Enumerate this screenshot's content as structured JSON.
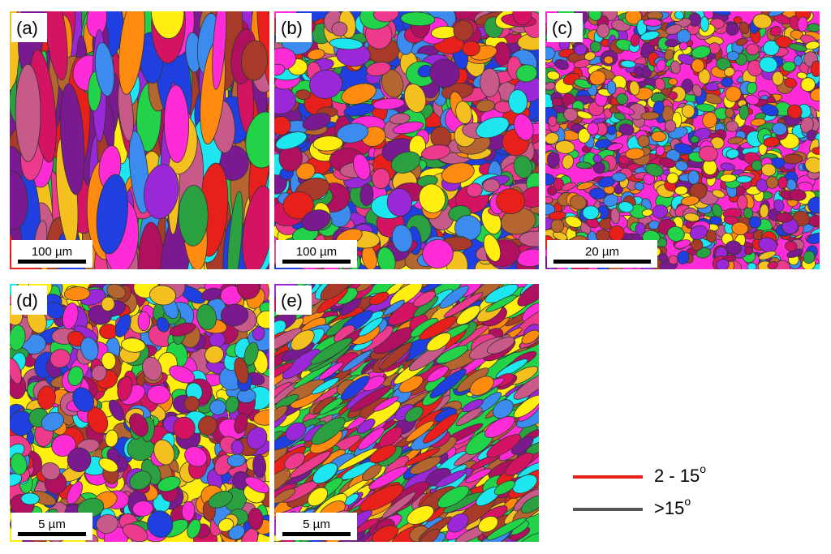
{
  "panels": [
    {
      "label": "(a)",
      "scale_bar": "100 µm"
    },
    {
      "label": "(b)",
      "scale_bar": "100 µm"
    },
    {
      "label": "(c)",
      "scale_bar": "20 µm"
    },
    {
      "label": "(d)",
      "scale_bar": "5 µm"
    },
    {
      "label": "(e)",
      "scale_bar": "5 µm"
    }
  ],
  "legend": [
    {
      "label": "2 - 15",
      "sup": "o",
      "color": "#e8201c"
    },
    {
      "label": ">15",
      "sup": "o",
      "color": "#555555"
    }
  ]
}
